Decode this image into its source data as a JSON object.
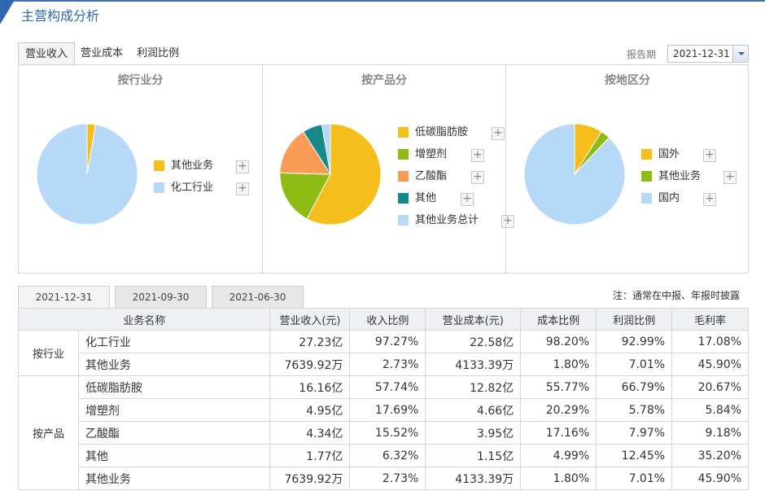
{
  "header": {
    "title": "主营构成分析"
  },
  "tabs": [
    "营业收入",
    "营业成本",
    "利润比例"
  ],
  "period": {
    "label": "报告期",
    "value": "2021-12-31"
  },
  "colors": {
    "yellow": "#f5be1c",
    "green": "#8fbc14",
    "orange": "#f99a55",
    "teal": "#168a8a",
    "lightblue": "#b5d9f7",
    "blue_accent": "#2e67b1"
  },
  "panels": [
    {
      "title": "按行业分",
      "legend": [
        {
          "label": "其他业务",
          "color": "#f5be1c"
        },
        {
          "label": "化工行业",
          "color": "#b5d9f7"
        }
      ]
    },
    {
      "title": "按产品分",
      "legend": [
        {
          "label": "低碳脂肪胺",
          "color": "#f5be1c"
        },
        {
          "label": "增塑剂",
          "color": "#8fbc14"
        },
        {
          "label": "乙酸酯",
          "color": "#f99a55"
        },
        {
          "label": "其他",
          "color": "#168a8a"
        },
        {
          "label": "其他业务总计",
          "color": "#b5d9f7"
        }
      ]
    },
    {
      "title": "按地区分",
      "legend": [
        {
          "label": "国外",
          "color": "#f5be1c"
        },
        {
          "label": "其他业务",
          "color": "#8fbc14"
        },
        {
          "label": "国内",
          "color": "#b5d9f7"
        }
      ]
    }
  ],
  "chart_data": [
    {
      "type": "pie",
      "title": "按行业分",
      "categories": [
        "其他业务",
        "化工行业"
      ],
      "values": [
        2.73,
        97.27
      ],
      "colors": [
        "#f5be1c",
        "#b5d9f7"
      ]
    },
    {
      "type": "pie",
      "title": "按产品分",
      "categories": [
        "低碳脂肪胺",
        "增塑剂",
        "乙酸酯",
        "其他",
        "其他业务总计"
      ],
      "values": [
        57.74,
        17.69,
        15.52,
        6.32,
        2.73
      ],
      "colors": [
        "#f5be1c",
        "#8fbc14",
        "#f99a55",
        "#168a8a",
        "#b5d9f7"
      ]
    },
    {
      "type": "pie",
      "title": "按地区分",
      "categories": [
        "国外",
        "其他业务",
        "国内"
      ],
      "values": [
        9,
        3,
        88
      ],
      "colors": [
        "#f5be1c",
        "#8fbc14",
        "#b5d9f7"
      ]
    }
  ],
  "date_tabs": [
    "2021-12-31",
    "2021-09-30",
    "2021-06-30"
  ],
  "note": "注：通常在中报、年报时披露",
  "table": {
    "headers": [
      "业务名称",
      "营业收入(元)",
      "收入比例",
      "营业成本(元)",
      "成本比例",
      "利润比例",
      "毛利率"
    ],
    "groups": [
      {
        "name": "按行业",
        "rows": [
          [
            "化工行业",
            "27.23亿",
            "97.27%",
            "22.58亿",
            "98.20%",
            "92.99%",
            "17.08%"
          ],
          [
            "其他业务",
            "7639.92万",
            "2.73%",
            "4133.39万",
            "1.80%",
            "7.01%",
            "45.90%"
          ]
        ]
      },
      {
        "name": "按产品",
        "rows": [
          [
            "低碳脂肪胺",
            "16.16亿",
            "57.74%",
            "12.82亿",
            "55.77%",
            "66.79%",
            "20.67%"
          ],
          [
            "增塑剂",
            "4.95亿",
            "17.69%",
            "4.66亿",
            "20.29%",
            "5.78%",
            "5.84%"
          ],
          [
            "乙酸酯",
            "4.34亿",
            "15.52%",
            "3.95亿",
            "17.16%",
            "7.97%",
            "9.18%"
          ],
          [
            "其他",
            "1.77亿",
            "6.32%",
            "1.15亿",
            "4.99%",
            "12.45%",
            "35.20%"
          ],
          [
            "其他业务",
            "7639.92万",
            "2.73%",
            "4133.39万",
            "1.80%",
            "7.01%",
            "45.90%"
          ]
        ]
      }
    ]
  }
}
